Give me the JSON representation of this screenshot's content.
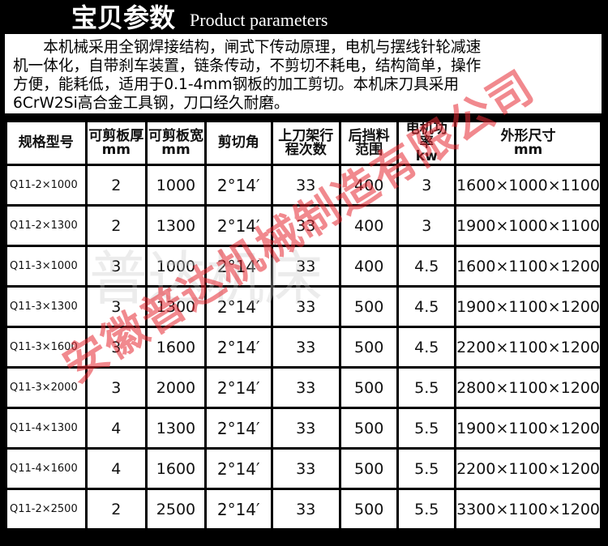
{
  "header": {
    "title_cn": "宝贝参数",
    "title_en": "Product parameters"
  },
  "intro": "本机械采用全钢焊接结构，闸式下传动原理，电机与摆线针轮减速机一体化，自带刹车装置，链条传动，不剪切不耗电，结构简单，操作方便，能耗低，适用于0.1-4mm钢板的加工剪切。本机床刀具采用6CrW2Si高合金工具钢，刀口经久耐磨。",
  "table": {
    "headers": [
      [
        "规格型号",
        ""
      ],
      [
        "可剪板厚",
        "mm"
      ],
      [
        "可剪板宽",
        "mm"
      ],
      [
        "剪切角",
        ""
      ],
      [
        "上刀架行",
        "程次数"
      ],
      [
        "后挡料",
        "范围"
      ],
      [
        "电机功率",
        "kw"
      ],
      [
        "外形尺寸",
        "mm"
      ]
    ],
    "rows": [
      [
        "Q11-2×1000",
        "2",
        "1000",
        "2°14′",
        "33",
        "400",
        "3",
        "1600×1000×1100"
      ],
      [
        "Q11-2×1300",
        "2",
        "1300",
        "2°14′",
        "33",
        "400",
        "3",
        "1900×1000×1100"
      ],
      [
        "Q11-3×1000",
        "3",
        "1000",
        "2°14′",
        "33",
        "400",
        "4.5",
        "1600×1100×1200"
      ],
      [
        "Q11-3×1300",
        "3",
        "1300",
        "2°14′",
        "33",
        "500",
        "4.5",
        "1900×1100×1200"
      ],
      [
        "Q11-3×1600",
        "3",
        "1600",
        "2°14′",
        "33",
        "500",
        "4.5",
        "2200×1100×1200"
      ],
      [
        "Q11-3×2000",
        "3",
        "2000",
        "2°14′",
        "33",
        "500",
        "5.5",
        "2800×1100×1200"
      ],
      [
        "Q11-4×1300",
        "4",
        "1300",
        "2°14′",
        "33",
        "500",
        "5.5",
        "1900×1100×1200"
      ],
      [
        "Q11-4×1600",
        "4",
        "1600",
        "2°14′",
        "33",
        "500",
        "5.5",
        "2200×1100×1200"
      ],
      [
        "Q11-2×2500",
        "2",
        "2500",
        "2°14′",
        "33",
        "500",
        "5.5",
        "3300×1100×1200"
      ]
    ]
  },
  "watermark": "安徽普达机械制造有限公司",
  "watermark2": "普达机床",
  "colors": {
    "watermark": "#e62832",
    "frame": "#000000"
  }
}
